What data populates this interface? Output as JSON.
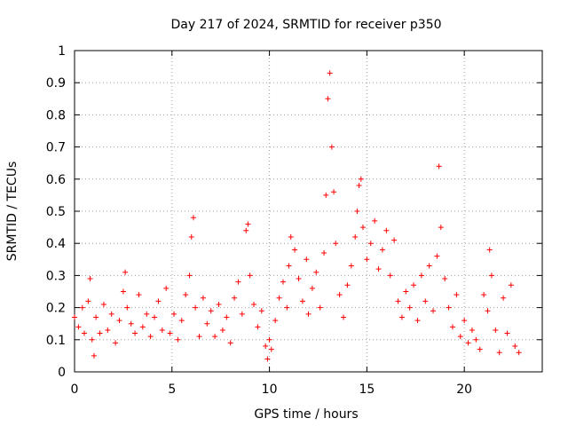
{
  "chart_data": {
    "type": "scatter",
    "title": "Day 217 of 2024, SRMTID for receiver p350",
    "xlabel": "GPS time / hours",
    "ylabel": "SRMTID / TECUs",
    "xlim": [
      0,
      24
    ],
    "ylim": [
      0,
      1
    ],
    "x_ticks": [
      0,
      5,
      10,
      15,
      20
    ],
    "x_tick_labels": [
      "0",
      "5",
      "10",
      "15",
      "20"
    ],
    "y_ticks": [
      0,
      0.1,
      0.2,
      0.3,
      0.4,
      0.5,
      0.6,
      0.7,
      0.8,
      0.9,
      1
    ],
    "y_tick_labels": [
      "0",
      "0.1",
      "0.2",
      "0.3",
      "0.4",
      "0.5",
      "0.6",
      "0.7",
      "0.8",
      "0.9",
      "1"
    ],
    "grid": true,
    "marker": "+",
    "marker_color": "#ff0000",
    "series": [
      {
        "name": "SRMTID",
        "x": [
          0.0,
          0.2,
          0.4,
          0.5,
          0.7,
          0.8,
          0.9,
          1.0,
          1.1,
          1.3,
          1.5,
          1.7,
          1.9,
          2.1,
          2.3,
          2.5,
          2.6,
          2.7,
          2.9,
          3.1,
          3.3,
          3.5,
          3.7,
          3.9,
          4.1,
          4.3,
          4.5,
          4.7,
          4.9,
          5.1,
          5.3,
          5.5,
          5.7,
          5.9,
          6.0,
          6.1,
          6.2,
          6.4,
          6.6,
          6.8,
          7.0,
          7.2,
          7.4,
          7.6,
          7.8,
          8.0,
          8.2,
          8.4,
          8.6,
          8.8,
          8.9,
          9.0,
          9.2,
          9.4,
          9.6,
          9.8,
          9.9,
          10.0,
          10.1,
          10.3,
          10.5,
          10.7,
          10.9,
          11.0,
          11.1,
          11.3,
          11.5,
          11.7,
          11.9,
          12.0,
          12.2,
          12.4,
          12.6,
          12.8,
          12.9,
          13.0,
          13.1,
          13.2,
          13.3,
          13.4,
          13.6,
          13.8,
          14.0,
          14.2,
          14.4,
          14.5,
          14.6,
          14.7,
          14.8,
          15.0,
          15.2,
          15.4,
          15.6,
          15.8,
          16.0,
          16.2,
          16.4,
          16.6,
          16.8,
          17.0,
          17.2,
          17.4,
          17.6,
          17.8,
          18.0,
          18.2,
          18.4,
          18.6,
          18.7,
          18.8,
          19.0,
          19.2,
          19.4,
          19.6,
          19.8,
          20.0,
          20.2,
          20.4,
          20.6,
          20.8,
          21.0,
          21.2,
          21.3,
          21.4,
          21.6,
          21.8,
          22.0,
          22.2,
          22.4,
          22.6,
          22.8
        ],
        "y": [
          0.17,
          0.14,
          0.2,
          0.12,
          0.22,
          0.29,
          0.1,
          0.05,
          0.17,
          0.12,
          0.21,
          0.13,
          0.18,
          0.09,
          0.16,
          0.25,
          0.31,
          0.2,
          0.15,
          0.12,
          0.24,
          0.14,
          0.18,
          0.11,
          0.17,
          0.22,
          0.13,
          0.26,
          0.12,
          0.18,
          0.1,
          0.16,
          0.24,
          0.3,
          0.42,
          0.48,
          0.2,
          0.11,
          0.23,
          0.15,
          0.19,
          0.11,
          0.21,
          0.13,
          0.17,
          0.09,
          0.23,
          0.28,
          0.18,
          0.44,
          0.46,
          0.3,
          0.21,
          0.14,
          0.19,
          0.08,
          0.04,
          0.1,
          0.07,
          0.16,
          0.23,
          0.28,
          0.2,
          0.33,
          0.42,
          0.38,
          0.29,
          0.22,
          0.35,
          0.18,
          0.26,
          0.31,
          0.2,
          0.37,
          0.55,
          0.85,
          0.93,
          0.7,
          0.56,
          0.4,
          0.24,
          0.17,
          0.27,
          0.33,
          0.42,
          0.5,
          0.58,
          0.6,
          0.45,
          0.35,
          0.4,
          0.47,
          0.32,
          0.38,
          0.44,
          0.3,
          0.41,
          0.22,
          0.17,
          0.25,
          0.2,
          0.27,
          0.16,
          0.3,
          0.22,
          0.33,
          0.19,
          0.36,
          0.64,
          0.45,
          0.29,
          0.2,
          0.14,
          0.24,
          0.11,
          0.16,
          0.09,
          0.13,
          0.1,
          0.07,
          0.24,
          0.19,
          0.38,
          0.3,
          0.13,
          0.06,
          0.23,
          0.12,
          0.27,
          0.08,
          0.06
        ]
      }
    ]
  }
}
